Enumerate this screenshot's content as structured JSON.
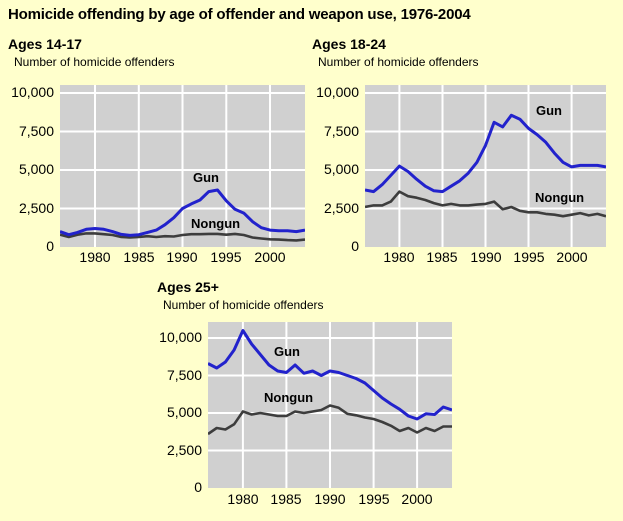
{
  "title": "Homicide offending by age of offender and weapon use, 1976-2004",
  "colors": {
    "background": "#ffffcc",
    "plot_background": "#d0d0d0",
    "gridline": "#ffffff",
    "gun_line": "#2222cc",
    "nongun_line": "#3d3d3d",
    "text": "#000000"
  },
  "chart_data": [
    {
      "type": "line",
      "title": "Ages 14-17",
      "ylabel": "Number of homicide offenders",
      "xlim": [
        1976,
        2004
      ],
      "ylim": [
        0,
        10519
      ],
      "xticks": [
        1980,
        1985,
        1990,
        1995,
        2000
      ],
      "xtick_labels": [
        "1980",
        "1985",
        "1990",
        "1995",
        "2000"
      ],
      "yticks": [
        0,
        2500,
        5000,
        7500,
        10000
      ],
      "ytick_labels": [
        "0",
        "2,500",
        "5,000",
        "7,500",
        "10,000"
      ],
      "grid": true,
      "legend": "inline-labels",
      "x": [
        1976,
        1977,
        1978,
        1979,
        1980,
        1981,
        1982,
        1983,
        1984,
        1985,
        1986,
        1987,
        1988,
        1989,
        1990,
        1991,
        1992,
        1993,
        1994,
        1995,
        1996,
        1997,
        1998,
        1999,
        2000,
        2001,
        2002,
        2003,
        2004
      ],
      "series": [
        {
          "name": "Gun",
          "color": "#2222cc",
          "values": [
            1000,
            800,
            950,
            1150,
            1200,
            1150,
            1000,
            820,
            750,
            800,
            950,
            1100,
            1450,
            1900,
            2500,
            2800,
            3050,
            3600,
            3700,
            3000,
            2450,
            2200,
            1650,
            1250,
            1100,
            1050,
            1050,
            1000,
            1100
          ]
        },
        {
          "name": "Nongun",
          "color": "#3d3d3d",
          "values": [
            800,
            650,
            800,
            880,
            880,
            830,
            780,
            650,
            620,
            650,
            700,
            650,
            700,
            680,
            780,
            830,
            830,
            850,
            850,
            800,
            850,
            780,
            620,
            550,
            500,
            480,
            450,
            430,
            480
          ]
        }
      ]
    },
    {
      "type": "line",
      "title": "Ages 18-24",
      "ylabel": "Number of homicide offenders",
      "xlim": [
        1976,
        2004
      ],
      "ylim": [
        0,
        10519
      ],
      "xticks": [
        1980,
        1985,
        1990,
        1995,
        2000
      ],
      "xtick_labels": [
        "1980",
        "1985",
        "1990",
        "1995",
        "2000"
      ],
      "yticks": [
        0,
        2500,
        5000,
        7500,
        10000
      ],
      "ytick_labels": [
        "0",
        "2,500",
        "5,000",
        "7,500",
        "10,000"
      ],
      "grid": true,
      "legend": "inline-labels",
      "x": [
        1976,
        1977,
        1978,
        1979,
        1980,
        1981,
        1982,
        1983,
        1984,
        1985,
        1986,
        1987,
        1988,
        1989,
        1990,
        1991,
        1992,
        1993,
        1994,
        1995,
        1996,
        1997,
        1998,
        1999,
        2000,
        2001,
        2002,
        2003,
        2004
      ],
      "series": [
        {
          "name": "Gun",
          "color": "#2222cc",
          "values": [
            3700,
            3600,
            4050,
            4650,
            5250,
            4900,
            4400,
            3950,
            3650,
            3600,
            3950,
            4300,
            4800,
            5500,
            6600,
            8100,
            7800,
            8550,
            8300,
            7700,
            7300,
            6800,
            6100,
            5500,
            5200,
            5300,
            5300,
            5300,
            5200
          ]
        },
        {
          "name": "Nongun",
          "color": "#3d3d3d",
          "values": [
            2600,
            2700,
            2700,
            2950,
            3600,
            3300,
            3200,
            3050,
            2850,
            2700,
            2800,
            2700,
            2700,
            2750,
            2800,
            2950,
            2450,
            2600,
            2350,
            2250,
            2250,
            2150,
            2100,
            2000,
            2100,
            2200,
            2050,
            2150,
            2000
          ]
        }
      ]
    },
    {
      "type": "line",
      "title": "Ages 25+",
      "ylabel": "Number of homicide offenders",
      "xlim": [
        1976,
        2004
      ],
      "ylim": [
        0,
        11067
      ],
      "xticks": [
        1980,
        1985,
        1990,
        1995,
        2000
      ],
      "xtick_labels": [
        "1980",
        "1985",
        "1990",
        "1995",
        "2000"
      ],
      "yticks": [
        0,
        2500,
        5000,
        7500,
        10000
      ],
      "ytick_labels": [
        "0",
        "2,500",
        "5,000",
        "7,500",
        "10,000"
      ],
      "grid": true,
      "legend": "inline-labels",
      "x": [
        1976,
        1977,
        1978,
        1979,
        1980,
        1981,
        1982,
        1983,
        1984,
        1985,
        1986,
        1987,
        1988,
        1989,
        1990,
        1991,
        1992,
        1993,
        1994,
        1995,
        1996,
        1997,
        1998,
        1999,
        2000,
        2001,
        2002,
        2003,
        2004
      ],
      "series": [
        {
          "name": "Gun",
          "color": "#2222cc",
          "values": [
            8300,
            8000,
            8400,
            9200,
            10500,
            9600,
            8900,
            8200,
            7800,
            7700,
            8200,
            7650,
            7800,
            7500,
            7800,
            7700,
            7500,
            7300,
            7000,
            6500,
            6000,
            5600,
            5250,
            4800,
            4600,
            4950,
            4900,
            5400,
            5200
          ]
        },
        {
          "name": "Nongun",
          "color": "#3d3d3d",
          "values": [
            3600,
            4000,
            3900,
            4250,
            5100,
            4900,
            5000,
            4900,
            4800,
            4800,
            5100,
            5000,
            5100,
            5200,
            5500,
            5350,
            4950,
            4850,
            4700,
            4600,
            4400,
            4150,
            3800,
            4000,
            3700,
            4000,
            3800,
            4100,
            4100
          ]
        }
      ]
    }
  ]
}
